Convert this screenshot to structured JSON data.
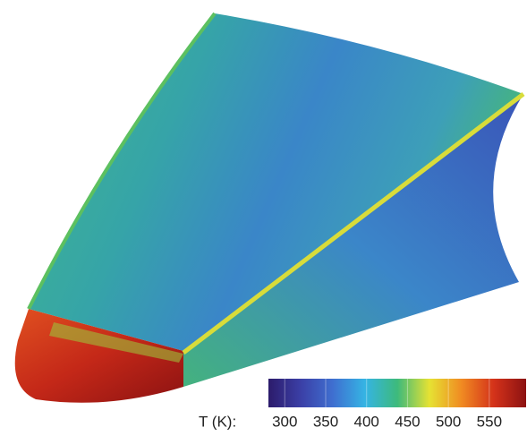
{
  "colorbar": {
    "label": "T (K):",
    "range": [
      280,
      595
    ],
    "ticks": [
      300,
      350,
      400,
      450,
      500,
      550
    ],
    "colors": [
      "#2c1b6b",
      "#3b3fa6",
      "#3f6fd0",
      "#35b4e4",
      "#3dba7c",
      "#e6e233",
      "#f08a22",
      "#d4321a",
      "#8c1212"
    ]
  }
}
